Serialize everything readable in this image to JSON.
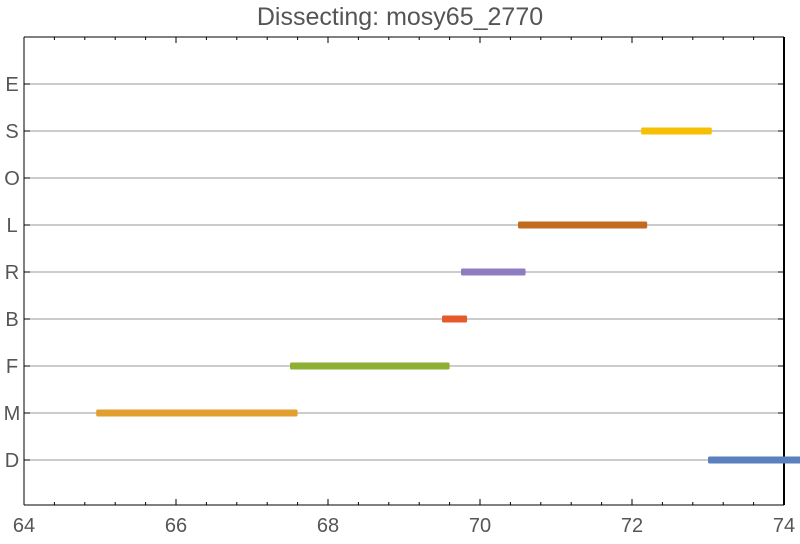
{
  "chart_data": {
    "type": "bar",
    "orientation": "horizontal-intervals",
    "title": "Dissecting: mosy65_2770",
    "xlabel": "",
    "ylabel": "",
    "xlim": [
      64,
      74
    ],
    "x_ticks": [
      64,
      66,
      68,
      70,
      72,
      74
    ],
    "categories": [
      "D",
      "M",
      "F",
      "B",
      "R",
      "L",
      "O",
      "S",
      "E"
    ],
    "grid": "horizontal",
    "legend": "none",
    "intervals": [
      {
        "category": "D",
        "start": 73.0,
        "end": 74.3,
        "color": "#5b7fbf"
      },
      {
        "category": "M",
        "start": 64.95,
        "end": 67.6,
        "color": "#e09f2e"
      },
      {
        "category": "F",
        "start": 67.5,
        "end": 69.6,
        "color": "#8eb032"
      },
      {
        "category": "B",
        "start": 69.5,
        "end": 69.83,
        "color": "#e55a2b"
      },
      {
        "category": "R",
        "start": 69.75,
        "end": 70.6,
        "color": "#8e7cc3"
      },
      {
        "category": "L",
        "start": 70.5,
        "end": 72.2,
        "color": "#c26a1e"
      },
      {
        "category": "S",
        "start": 72.12,
        "end": 73.05,
        "color": "#f5c003"
      }
    ]
  }
}
